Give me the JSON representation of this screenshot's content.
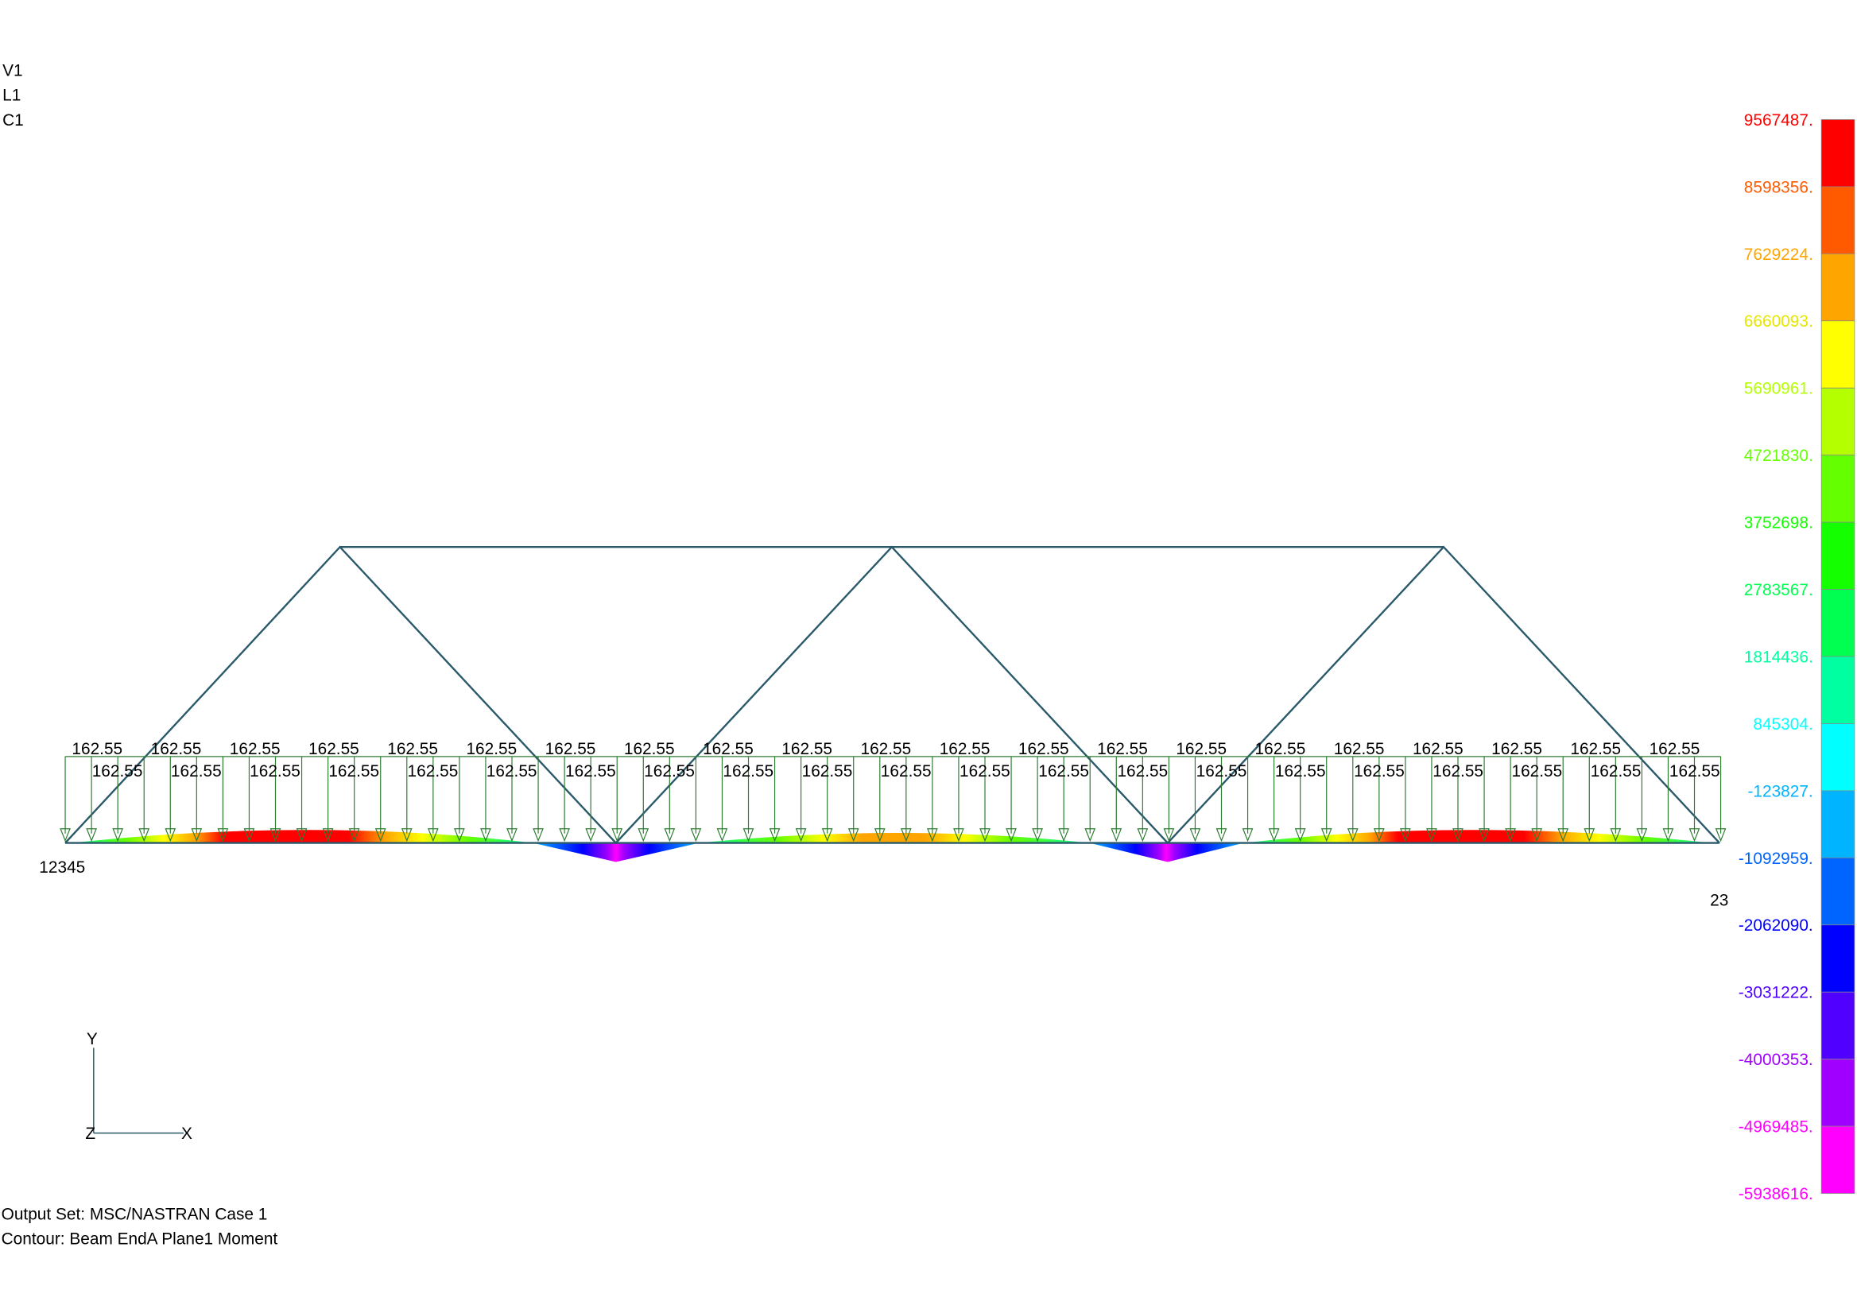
{
  "header": {
    "lines": [
      "V1",
      "L1",
      "C1"
    ]
  },
  "legend": {
    "labels": [
      "9567487.",
      "8598356.",
      "7629224.",
      "6660093.",
      "5690961.",
      "4721830.",
      "3752698.",
      "2783567.",
      "1814436.",
      "845304.",
      "-123827.",
      "-1092959.",
      "-2062090.",
      "-3031222.",
      "-4000353.",
      "-4969485.",
      "-5938616."
    ],
    "colors": [
      "#ff0000",
      "#ff5a00",
      "#ffa500",
      "#ffff00",
      "#b4ff00",
      "#64ff00",
      "#14ff00",
      "#00ff50",
      "#00ffa0",
      "#00ffff",
      "#00b4ff",
      "#0064ff",
      "#0000ff",
      "#5000ff",
      "#a000ff",
      "#ff00ff"
    ]
  },
  "loads": {
    "top": [
      "162.55",
      "162.55",
      "162.55",
      "162.55",
      "162.55",
      "162.55",
      "162.55",
      "162.55",
      "162.55",
      "162.55",
      "162.55",
      "162.55",
      "162.55",
      "162.55",
      "162.55",
      "162.55",
      "162.55",
      "162.55",
      "162.55",
      "162.55",
      "162.55"
    ],
    "bottom": [
      "162.55",
      "162.55",
      "162.55",
      "162.55",
      "162.55",
      "162.55",
      "162.55",
      "162.55",
      "162.55",
      "162.55",
      "162.55",
      "162.55",
      "162.55",
      "162.55",
      "162.55",
      "162.55",
      "162.55",
      "162.55",
      "162.55",
      "162.55",
      "162.55"
    ]
  },
  "nodes": {
    "left": "12345",
    "right": "23"
  },
  "triad": {
    "y": "Y",
    "z": "Z",
    "x": "X"
  },
  "footer": {
    "lines": [
      "Output Set: MSC/NASTRAN Case 1",
      "Contour: Beam EndA Plane1 Moment"
    ]
  }
}
